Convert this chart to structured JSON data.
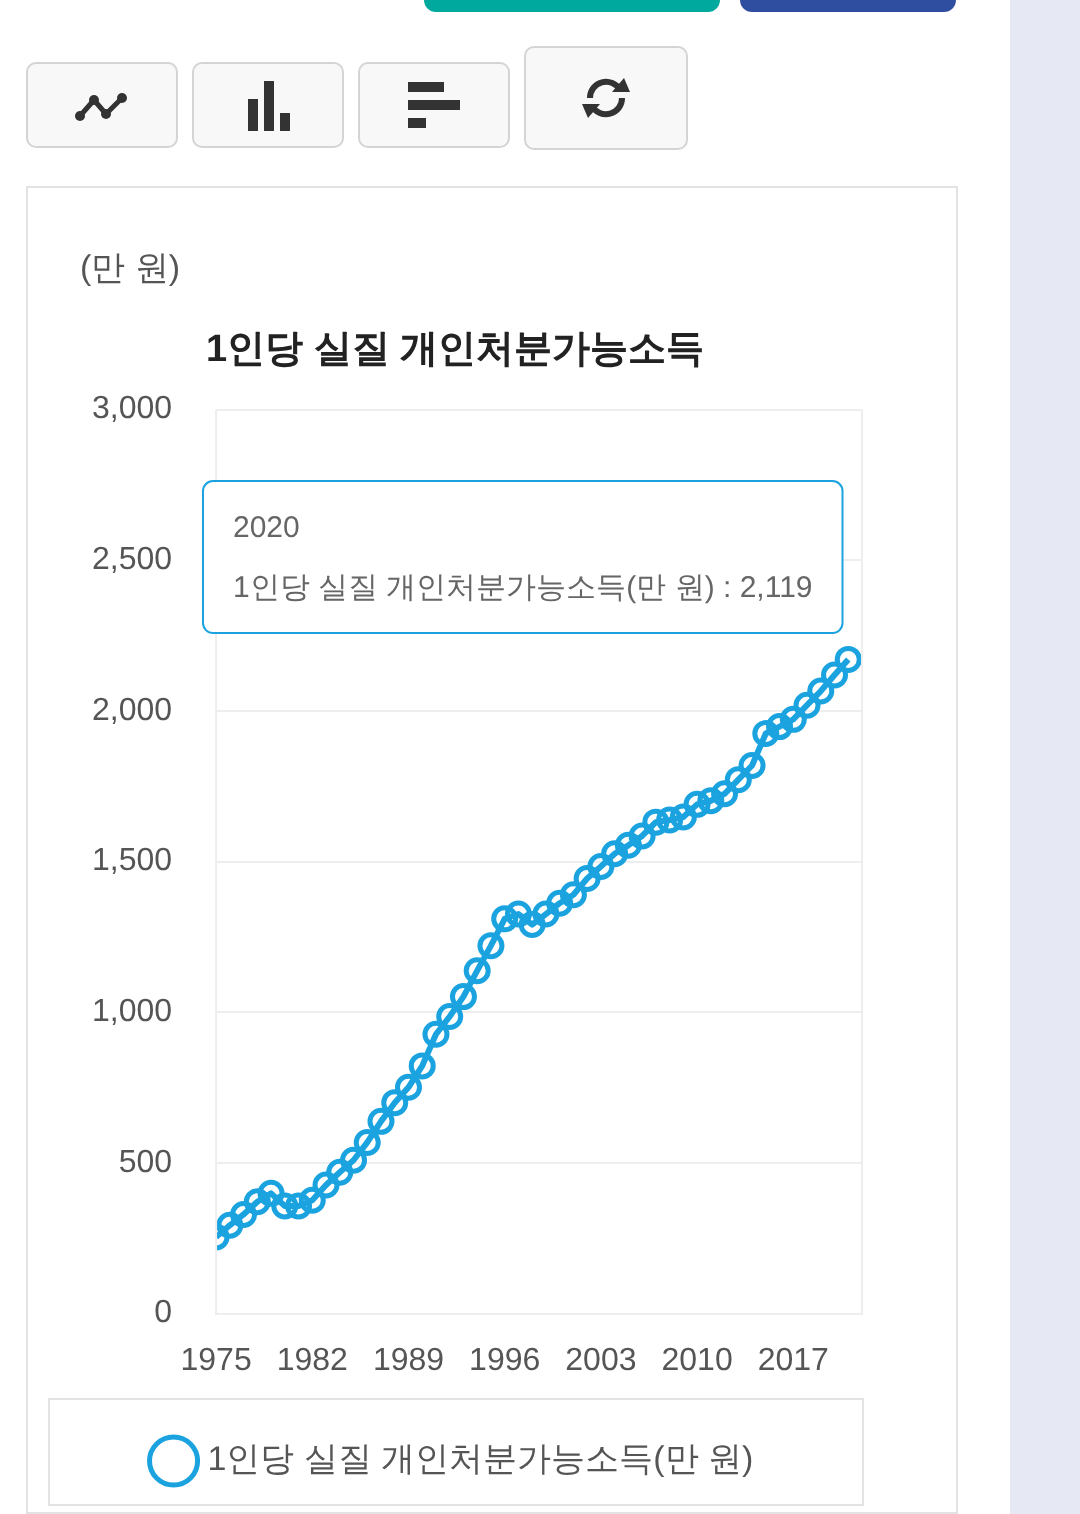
{
  "chart_data": {
    "type": "line",
    "title": "1인당 실질 개인처분가능소득",
    "ylabel": "(만 원)",
    "annotations": [
      {
        "text": "2020\n1인당 실질 개인처분가능소득(만 원) : 2,119",
        "x": 2020,
        "y": 2119
      }
    ],
    "x": [
      1975,
      1976,
      1977,
      1978,
      1979,
      1980,
      1981,
      1982,
      1983,
      1984,
      1985,
      1986,
      1987,
      1988,
      1989,
      1990,
      1991,
      1992,
      1993,
      1994,
      1995,
      1996,
      1997,
      1998,
      1999,
      2000,
      2001,
      2002,
      2003,
      2004,
      2005,
      2006,
      2007,
      2008,
      2009,
      2010,
      2011,
      2012,
      2013,
      2014,
      2015,
      2016,
      2017,
      2018,
      2019,
      2020,
      2021
    ],
    "series": [
      {
        "name": "1인당 실질 개인처분가능소득(만 원)",
        "color": "#1ba3e0",
        "values": [
          254,
          293,
          329,
          371,
          399,
          357,
          357,
          376,
          427,
          469,
          509,
          568,
          638,
          700,
          751,
          822,
          927,
          986,
          1052,
          1138,
          1221,
          1310,
          1326,
          1291,
          1326,
          1362,
          1390,
          1444,
          1484,
          1526,
          1554,
          1585,
          1631,
          1638,
          1648,
          1690,
          1702,
          1725,
          1772,
          1819,
          1925,
          1948,
          1972,
          2019,
          2066,
          2119,
          2171
        ]
      }
    ],
    "xlim": [
      1975,
      2022
    ],
    "xticks": [
      1975,
      1982,
      1989,
      1996,
      2003,
      2010,
      2017
    ],
    "ylim": [
      0,
      3000
    ],
    "yticks": [
      0,
      500,
      {
        "value": 1000,
        "label": "1,000"
      },
      {
        "value": 1500,
        "label": "1,500"
      },
      {
        "value": 2000,
        "label": "2,000"
      },
      {
        "value": 2500,
        "label": "2,500"
      },
      {
        "value": 3000,
        "label": "3,000"
      }
    ],
    "grid": "y",
    "legend": "bottom",
    "marker": "circle",
    "line_style": "solid"
  }
}
